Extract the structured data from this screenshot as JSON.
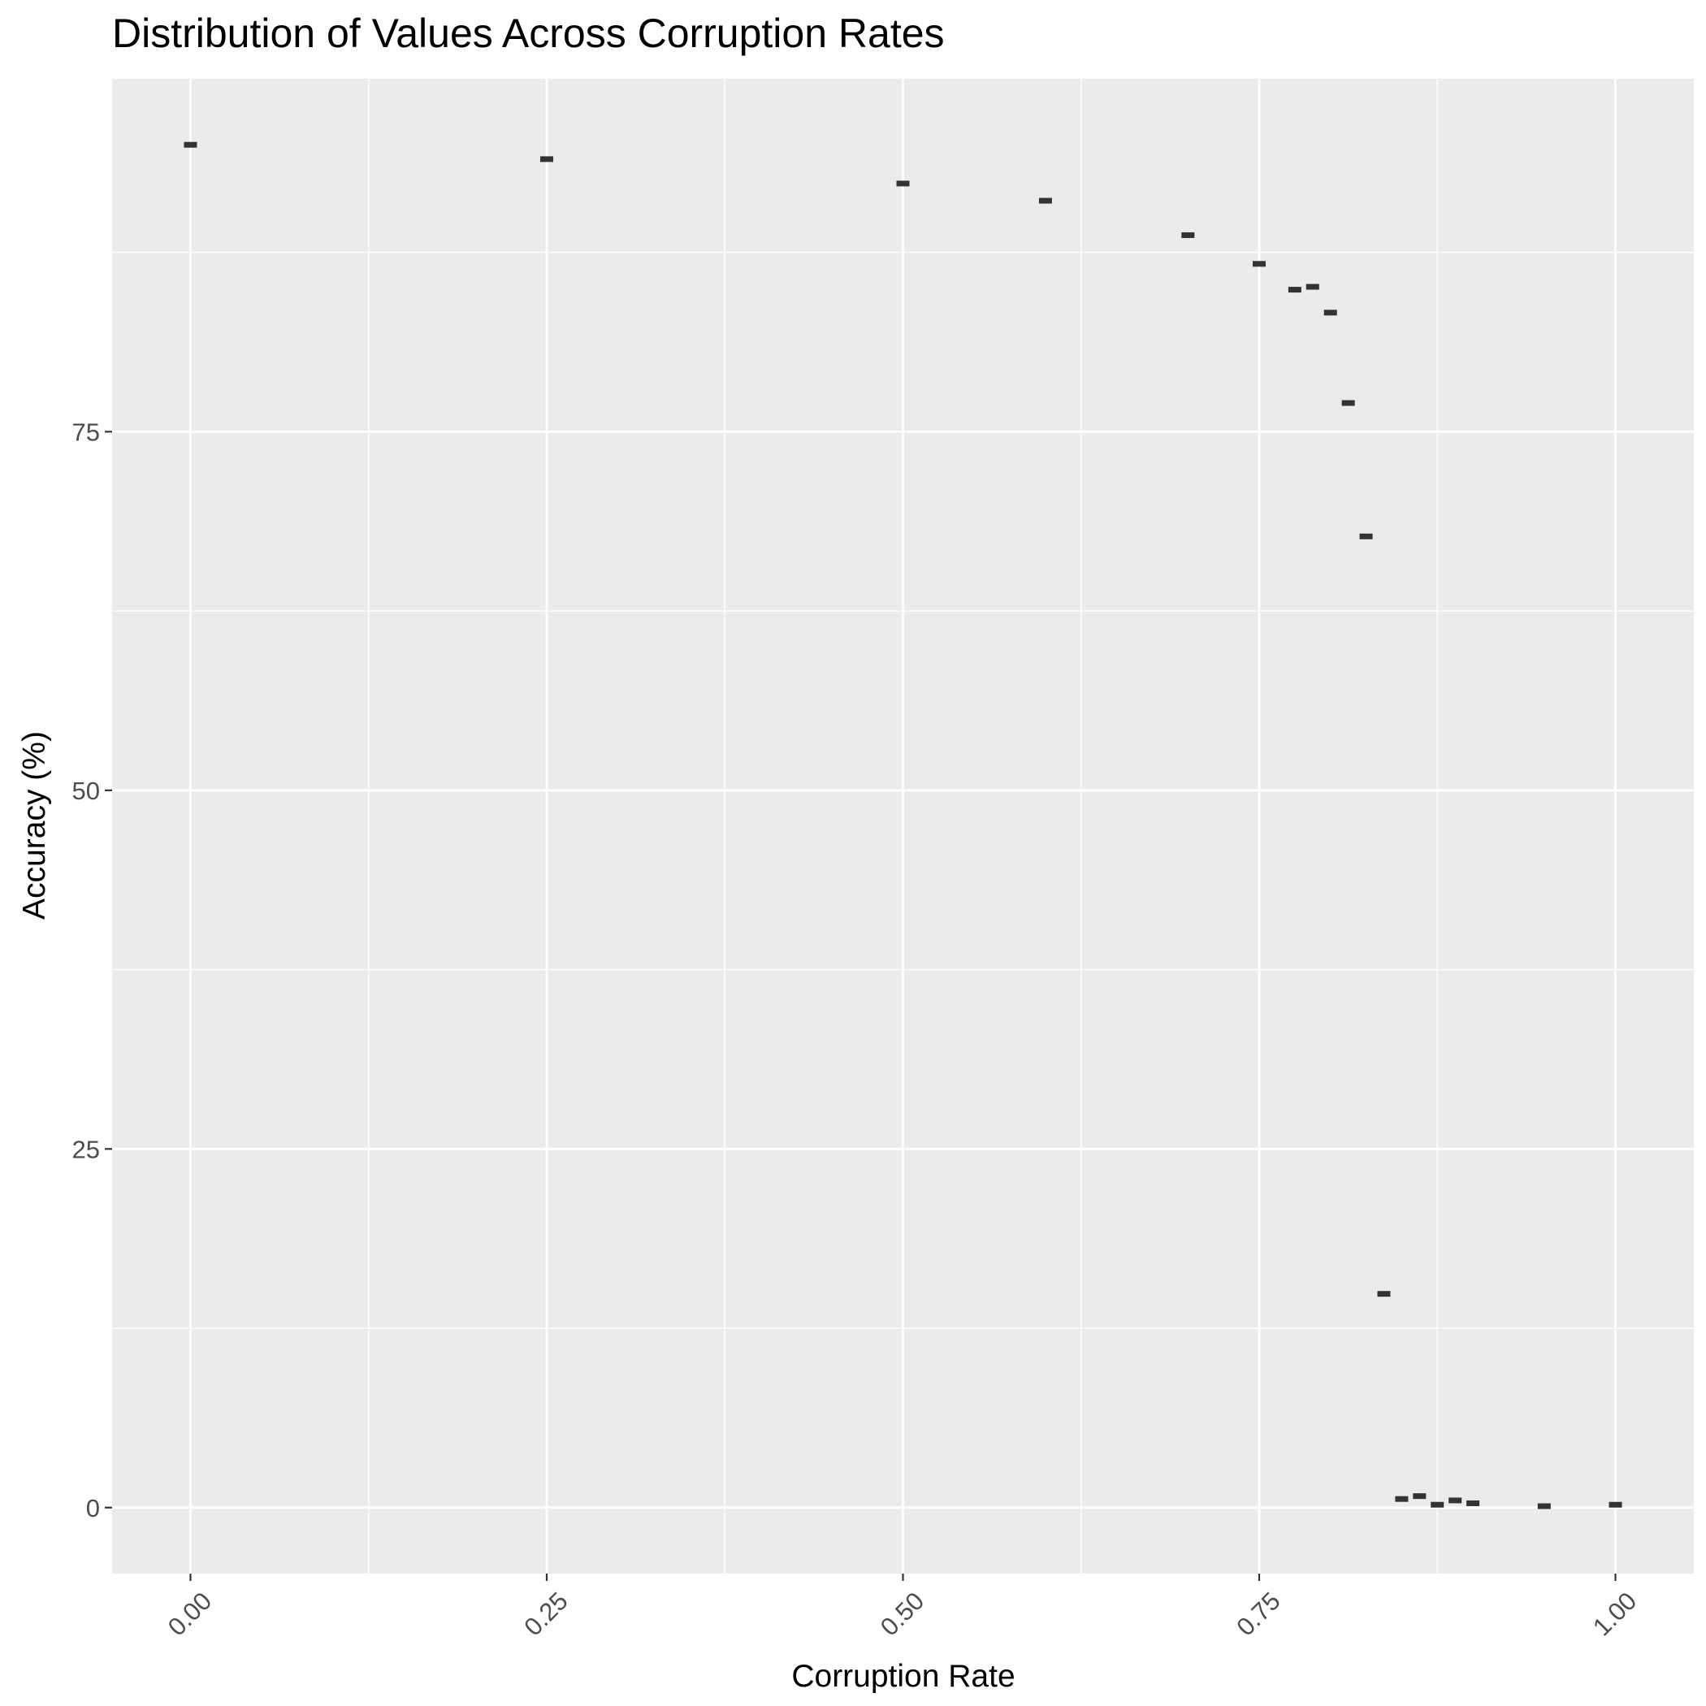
{
  "chart_data": {
    "type": "scatter",
    "title": "Distribution of Values Across Corruption Rates",
    "xlabel": "Corruption Rate",
    "ylabel": "Accuracy (%)",
    "xlim": [
      -0.055,
      1.055
    ],
    "ylim": [
      -4.6,
      99.6
    ],
    "x_ticks": [
      0.0,
      0.25,
      0.5,
      0.75,
      1.0
    ],
    "x_tick_labels": [
      "0.00",
      "0.25",
      "0.50",
      "0.75",
      "1.00"
    ],
    "x_minor_ticks": [
      0.125,
      0.375,
      0.625,
      0.875
    ],
    "y_ticks": [
      0,
      25,
      50,
      75
    ],
    "y_tick_labels": [
      "0",
      "25",
      "50",
      "75"
    ],
    "y_minor_ticks": [
      12.5,
      37.5,
      62.5,
      87.5
    ],
    "x_tick_label_rotation": 45,
    "grid": true,
    "panel_background": "#ebebeb",
    "grid_color": "#ffffff",
    "mark_color": "#333333",
    "mark_shape": "short horizontal bar",
    "points": [
      {
        "x": 0.0,
        "y": 95.0
      },
      {
        "x": 0.25,
        "y": 94.0
      },
      {
        "x": 0.5,
        "y": 92.3
      },
      {
        "x": 0.6,
        "y": 91.1
      },
      {
        "x": 0.7,
        "y": 88.7
      },
      {
        "x": 0.75,
        "y": 86.7
      },
      {
        "x": 0.775,
        "y": 84.9
      },
      {
        "x": 0.7875,
        "y": 85.1
      },
      {
        "x": 0.8,
        "y": 83.3
      },
      {
        "x": 0.8125,
        "y": 77.0
      },
      {
        "x": 0.825,
        "y": 67.7
      },
      {
        "x": 0.8375,
        "y": 14.9
      },
      {
        "x": 0.85,
        "y": 0.6
      },
      {
        "x": 0.8625,
        "y": 0.8
      },
      {
        "x": 0.875,
        "y": 0.2
      },
      {
        "x": 0.8875,
        "y": 0.5
      },
      {
        "x": 0.9,
        "y": 0.3
      },
      {
        "x": 0.95,
        "y": 0.1
      },
      {
        "x": 1.0,
        "y": 0.2
      }
    ]
  }
}
